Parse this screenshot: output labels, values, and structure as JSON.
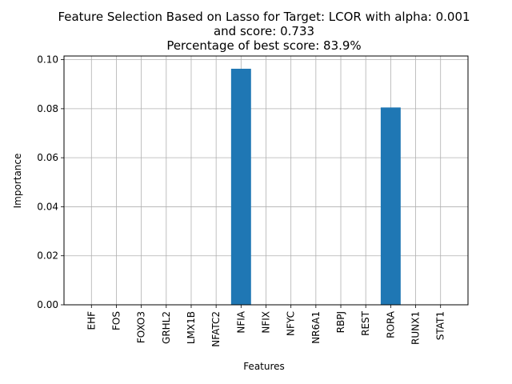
{
  "chart_data": {
    "type": "bar",
    "title_lines": [
      "Feature Selection Based on Lasso for Target: LCOR with alpha: 0.001",
      "and score: 0.733",
      "Percentage of best score: 83.9%"
    ],
    "xlabel": "Features",
    "ylabel": "Importance",
    "categories": [
      "EHF",
      "FOS",
      "FOXO3",
      "GRHL2",
      "LMX1B",
      "NFATC2",
      "NFIA",
      "NFIX",
      "NFYC",
      "NR6A1",
      "RBPJ",
      "REST",
      "RORA",
      "RUNX1",
      "STAT1"
    ],
    "values": [
      0,
      0,
      0,
      0,
      0,
      0,
      0.0963,
      0,
      0,
      0,
      0,
      0,
      0.0805,
      0,
      0
    ],
    "ylim": [
      0,
      0.1015
    ],
    "yticks": [
      0.0,
      0.02,
      0.04,
      0.06,
      0.08,
      0.1
    ],
    "ytick_labels": [
      "0.00",
      "0.02",
      "0.04",
      "0.06",
      "0.08",
      "0.10"
    ],
    "grid": true,
    "bar_color": "#1f77b4"
  }
}
